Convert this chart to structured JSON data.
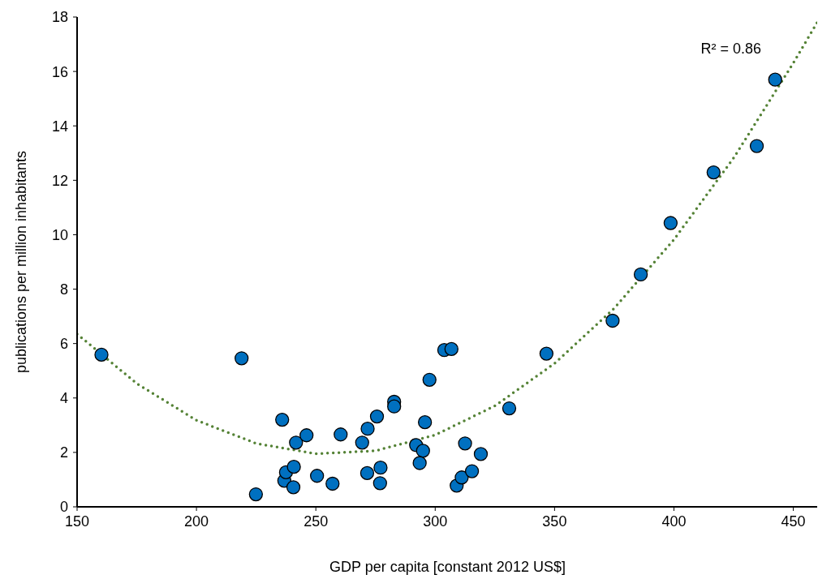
{
  "chart_data": {
    "type": "scatter",
    "xlabel": "GDP per capita [constant 2012 US$]",
    "ylabel": "publications per million inhabitants",
    "xlim": [
      150,
      460
    ],
    "xticks": [
      150,
      200,
      250,
      300,
      350,
      400,
      450
    ],
    "ylim": [
      0,
      18
    ],
    "yticks": [
      0,
      2,
      4,
      6,
      8,
      10,
      12,
      14,
      16,
      18
    ],
    "grid": false,
    "legend": false,
    "annotations": [
      "R² = 0.86"
    ],
    "series": [
      {
        "color": "#0070c0",
        "marker": "circle",
        "x": [
          160.2,
          218.9,
          224.9,
          235.9,
          236.8,
          237.5,
          240.8,
          240.6,
          241.7,
          246.1,
          250.5,
          257.0,
          260.4,
          269.4,
          271.7,
          271.5,
          275.6,
          277.1,
          276.9,
          282.8,
          282.8,
          292.0,
          294.9,
          293.5,
          295.7,
          297.6,
          303.8,
          306.8,
          309.0,
          311.1,
          312.5,
          315.4,
          319.1,
          331.0,
          346.6,
          374.3,
          386.1,
          398.6,
          416.6,
          434.7,
          442.4
        ],
        "values": [
          5.59,
          5.46,
          0.46,
          3.2,
          0.96,
          1.27,
          1.47,
          0.72,
          2.36,
          2.63,
          1.14,
          0.85,
          2.66,
          2.36,
          2.87,
          1.24,
          3.32,
          1.44,
          0.87,
          3.86,
          3.69,
          2.27,
          2.06,
          1.61,
          3.11,
          4.67,
          5.76,
          5.8,
          0.78,
          1.08,
          2.33,
          1.31,
          1.94,
          3.62,
          5.63,
          6.84,
          8.54,
          10.43,
          12.29,
          13.26,
          15.7
        ]
      },
      {
        "type": "line",
        "color": "#548235",
        "marker": "none",
        "line_style": "dotted",
        "x": [
          150,
          175,
          200,
          225,
          250,
          275,
          300,
          325,
          350,
          375,
          400,
          425,
          450,
          460
        ],
        "values": [
          6.35,
          4.53,
          3.18,
          2.33,
          1.95,
          2.06,
          2.64,
          3.71,
          5.27,
          7.3,
          9.82,
          12.82,
          16.31,
          17.8
        ]
      }
    ]
  }
}
